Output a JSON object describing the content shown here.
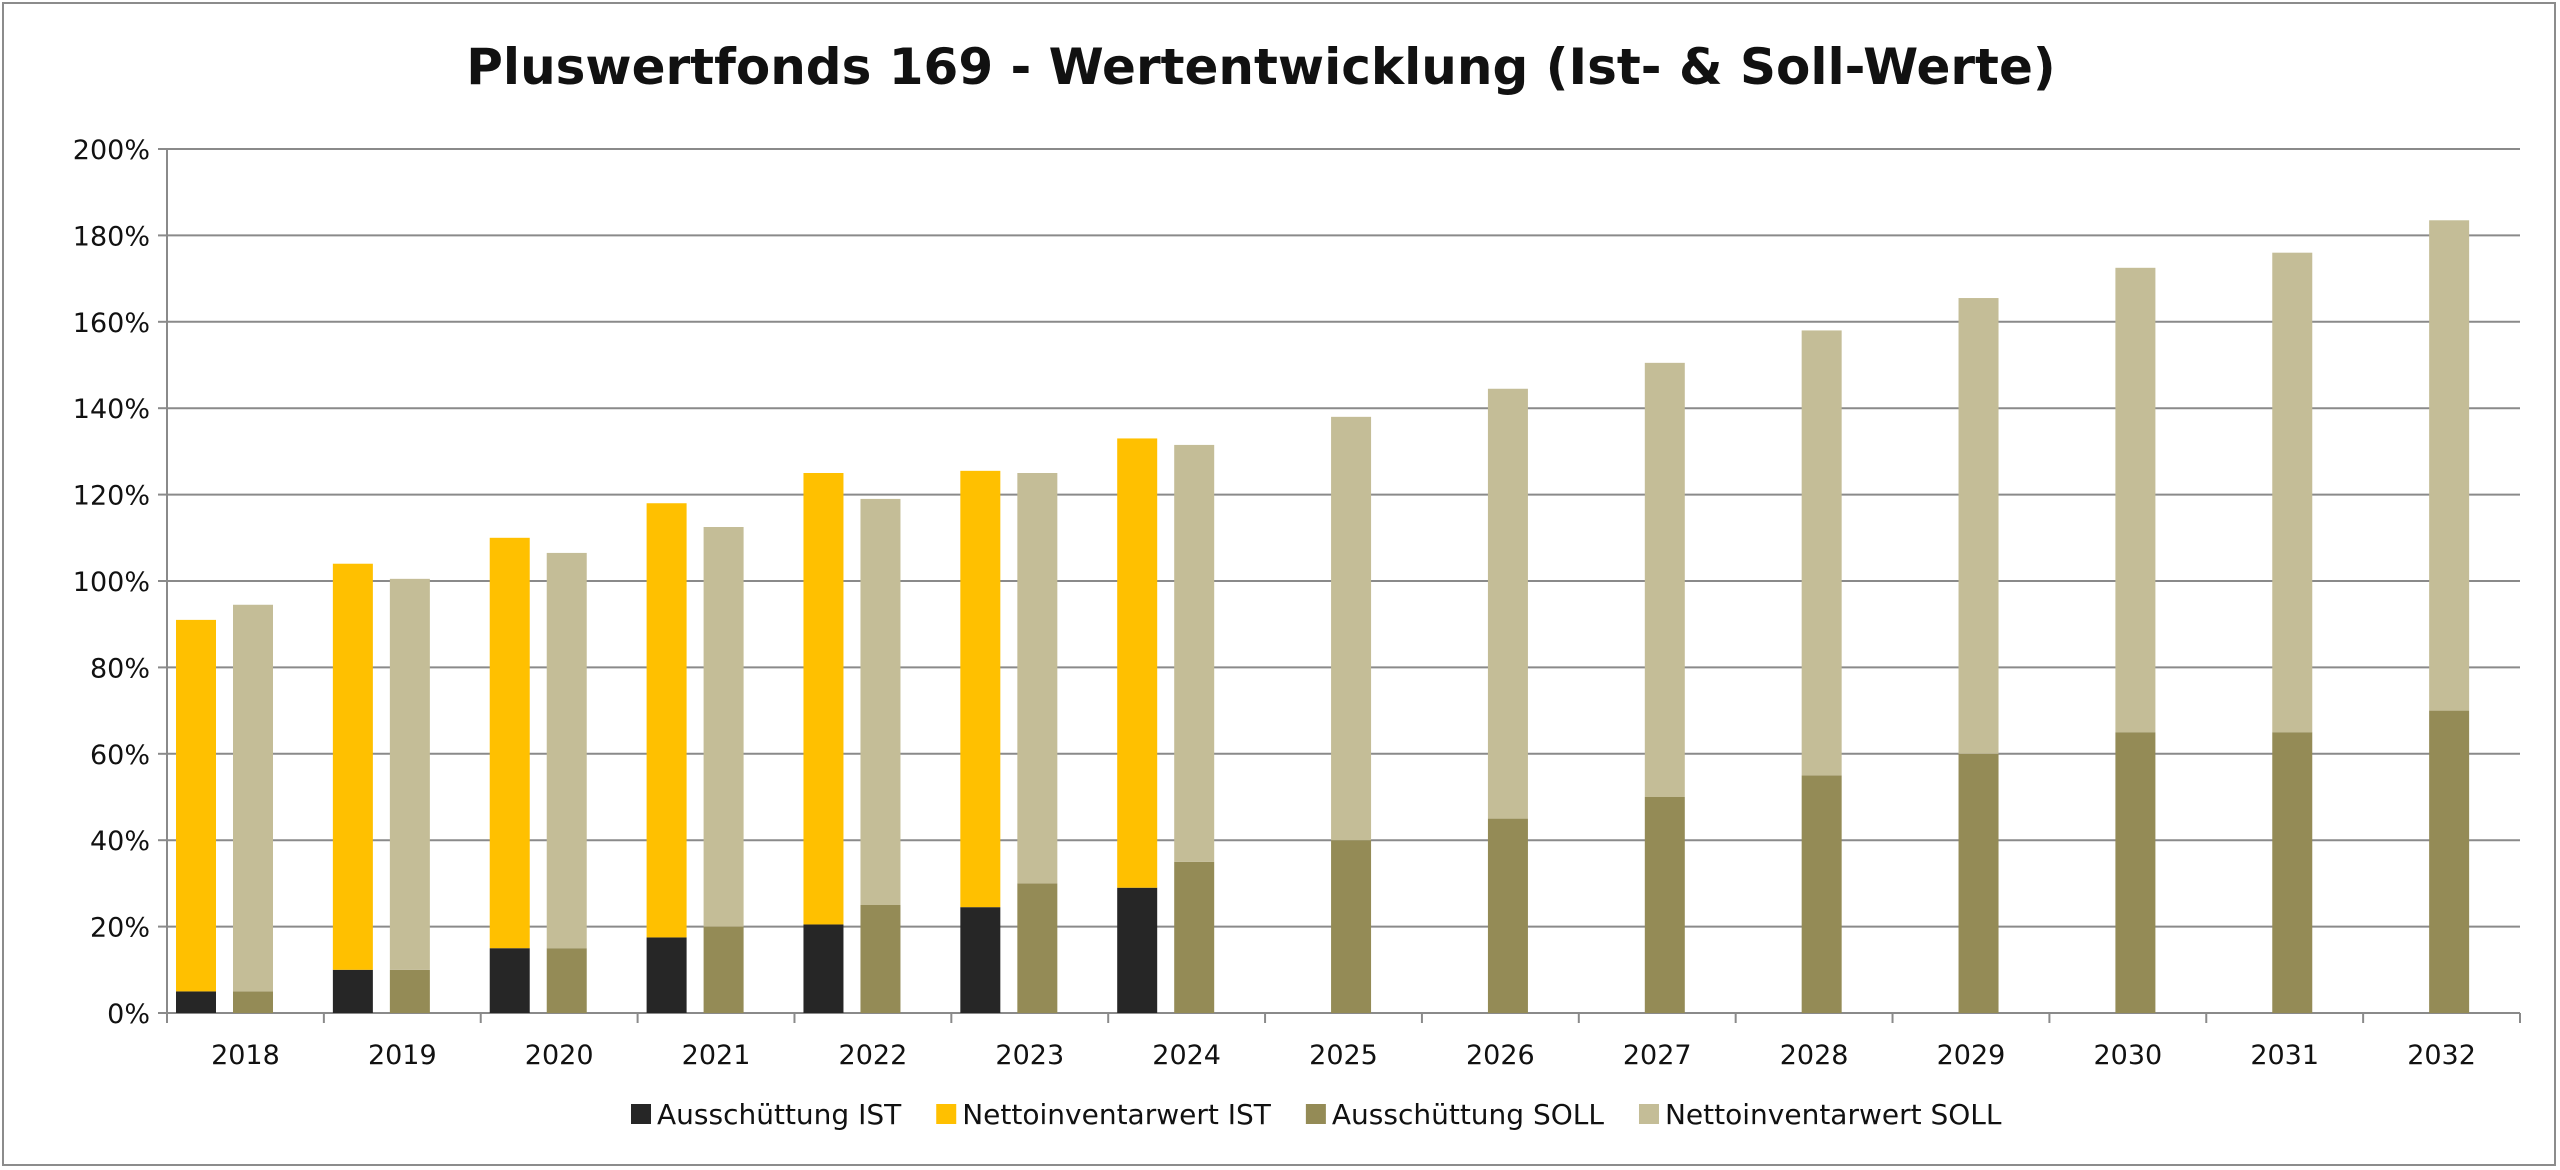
{
  "chart_data": {
    "type": "bar",
    "title": "Pluswertfonds 169 - Wertentwicklung (Ist- & Soll-Werte)",
    "xlabel": "",
    "ylabel": "",
    "categories": [
      "2018",
      "2019",
      "2020",
      "2021",
      "2022",
      "2023",
      "2024",
      "2025",
      "2026",
      "2027",
      "2028",
      "2029",
      "2030",
      "2031",
      "2032"
    ],
    "ylim": [
      0,
      200
    ],
    "yticks": [
      "0%",
      "20%",
      "40%",
      "60%",
      "80%",
      "100%",
      "120%",
      "140%",
      "160%",
      "180%",
      "200%"
    ],
    "grid": true,
    "legend_position": "bottom",
    "stacks": [
      {
        "stack": "IST",
        "segments": [
          "Ausschüttung IST",
          "Nettoinventarwert IST"
        ]
      },
      {
        "stack": "SOLL",
        "segments": [
          "Ausschüttung SOLL",
          "Nettoinventarwert SOLL"
        ]
      }
    ],
    "series": [
      {
        "name": "Ausschüttung IST",
        "color": "#262626",
        "values": [
          5,
          10,
          15,
          17.5,
          20.5,
          24.5,
          29,
          null,
          null,
          null,
          null,
          null,
          null,
          null,
          null
        ]
      },
      {
        "name": "Nettoinventarwert IST",
        "color": "#ffc000",
        "values": [
          86,
          94,
          95,
          100.5,
          104.5,
          101,
          104,
          null,
          null,
          null,
          null,
          null,
          null,
          null,
          null
        ]
      },
      {
        "name": "Ausschüttung SOLL",
        "color": "#948b56",
        "values": [
          5,
          10,
          15,
          20,
          25,
          30,
          35,
          40,
          45,
          50,
          55,
          60,
          65,
          65,
          70
        ]
      },
      {
        "name": "Nettoinventarwert SOLL",
        "color": "#c4bd97",
        "values": [
          89.5,
          90.5,
          91.5,
          92.5,
          94,
          95,
          96.5,
          98,
          99.5,
          100.5,
          103,
          105.5,
          107.5,
          111,
          113.5
        ]
      }
    ]
  }
}
